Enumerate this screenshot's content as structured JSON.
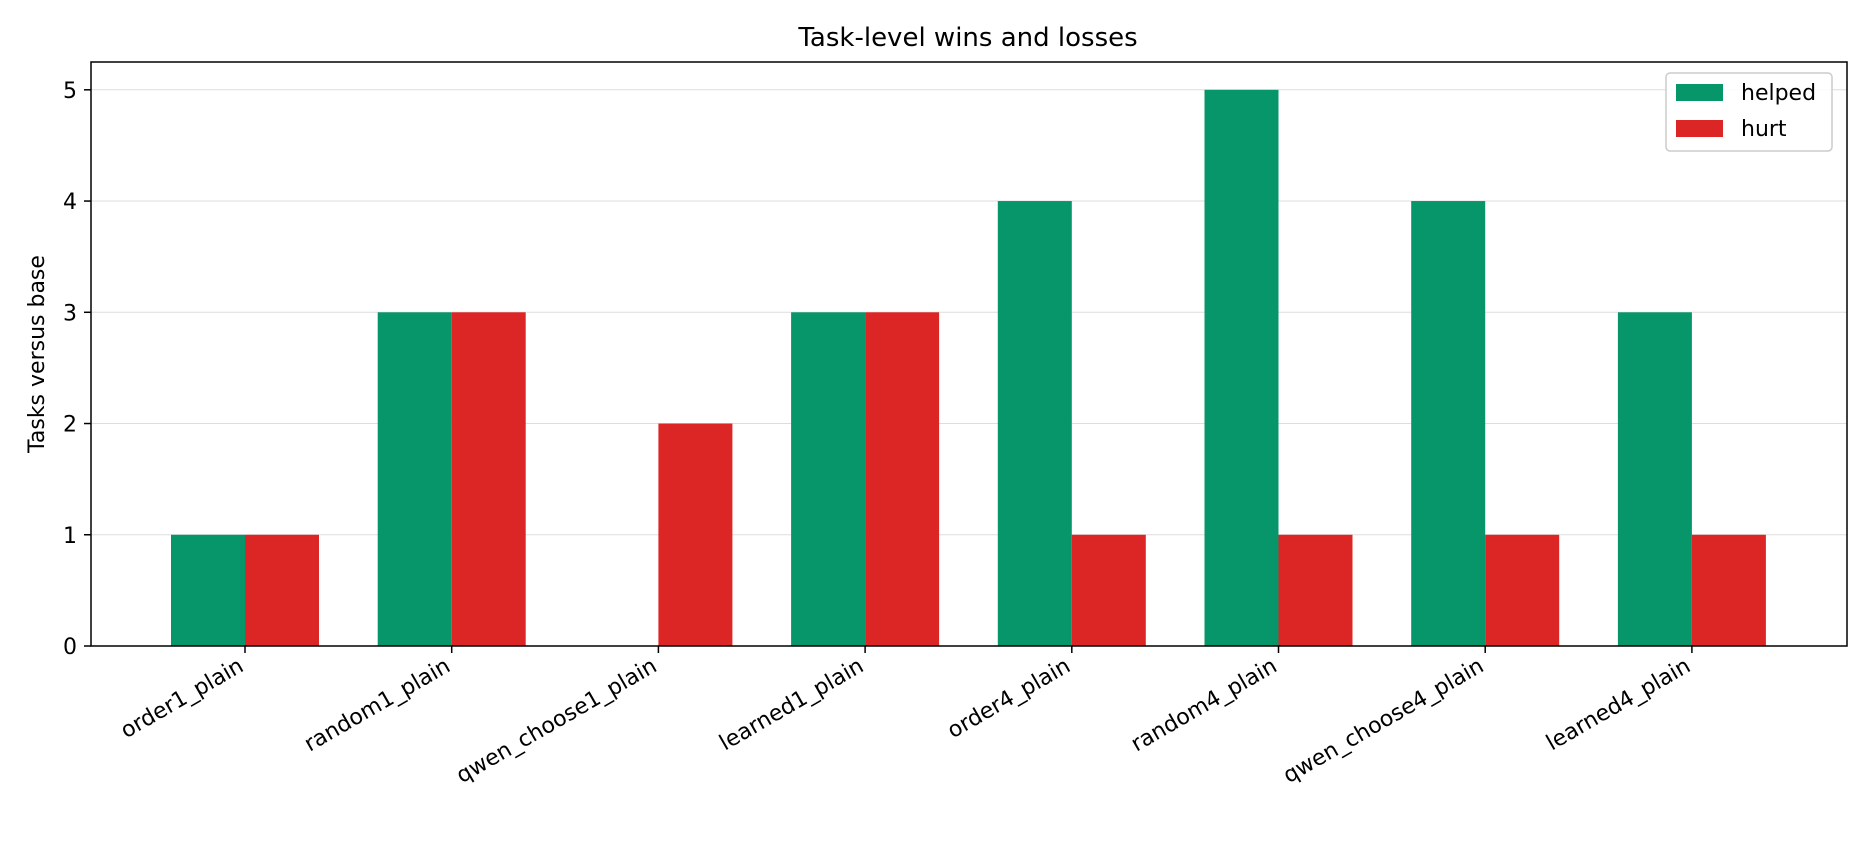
{
  "chart_data": {
    "type": "bar",
    "title": "Task-level wins and losses",
    "xlabel": "",
    "ylabel": "Tasks versus base",
    "categories": [
      "order1_plain",
      "random1_plain",
      "qwen_choose1_plain",
      "learned1_plain",
      "order4_plain",
      "random4_plain",
      "qwen_choose4_plain",
      "learned4_plain"
    ],
    "series": [
      {
        "name": "helped",
        "color": "#07966A",
        "values": [
          1,
          3,
          0,
          3,
          4,
          5,
          4,
          3
        ]
      },
      {
        "name": "hurt",
        "color": "#DC2626",
        "values": [
          1,
          3,
          2,
          3,
          1,
          1,
          1,
          1
        ]
      }
    ],
    "ylim": [
      0,
      5.25
    ],
    "yticks": [
      0,
      1,
      2,
      3,
      4,
      5
    ],
    "grid": "horizontal",
    "legend_position": "top-right"
  }
}
